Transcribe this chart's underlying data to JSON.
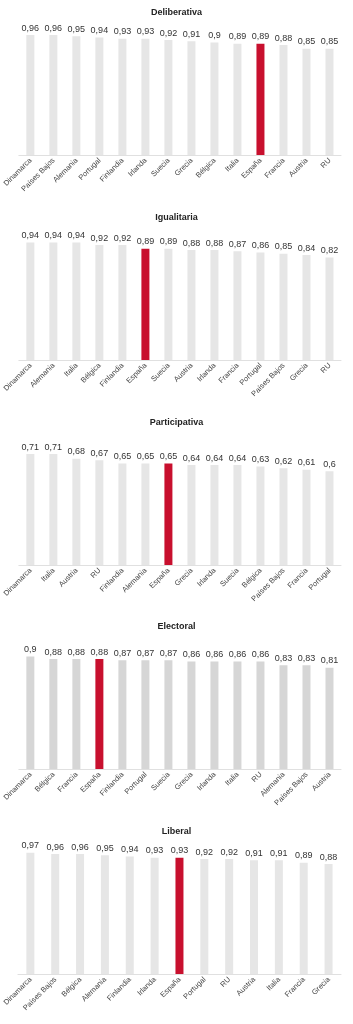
{
  "chart_data": [
    {
      "type": "bar",
      "title": "Deliberativa",
      "categories": [
        "Dinamarca",
        "Países Bajos",
        "Alemania",
        "Portugal",
        "Finlandia",
        "Irlanda",
        "Suecia",
        "Grecia",
        "Bélgica",
        "Italia",
        "España",
        "Francia",
        "Austria",
        "RU"
      ],
      "values": [
        0.96,
        0.96,
        0.95,
        0.94,
        0.93,
        0.93,
        0.92,
        0.91,
        0.9,
        0.89,
        0.89,
        0.88,
        0.85,
        0.85
      ],
      "value_labels": [
        "0,96",
        "0,96",
        "0,95",
        "0,94",
        "0,93",
        "0,93",
        "0,92",
        "0,91",
        "0,9",
        "0,89",
        "0,89",
        "0,88",
        "0,85",
        "0,85"
      ],
      "colors": [
        "#e6e6e6",
        "#e6e6e6",
        "#e6e6e6",
        "#e6e6e6",
        "#e6e6e6",
        "#e6e6e6",
        "#e6e6e6",
        "#e6e6e6",
        "#e6e6e6",
        "#e6e6e6",
        "#c8102e",
        "#e6e6e6",
        "#e6e6e6",
        "#e6e6e6"
      ],
      "tick_labels": "x"
    },
    {
      "type": "bar",
      "title": "Igualitaria",
      "categories": [
        "Dinamarca",
        "Alemania",
        "Italia",
        "Bélgica",
        "Finlandia",
        "España",
        "Suecia",
        "Austria",
        "Irlanda",
        "Francia",
        "Portugal",
        "Países Bajos",
        "Grecia",
        "RU"
      ],
      "values": [
        0.94,
        0.94,
        0.94,
        0.92,
        0.92,
        0.89,
        0.89,
        0.88,
        0.88,
        0.87,
        0.86,
        0.85,
        0.84,
        0.82
      ],
      "value_labels": [
        "0,94",
        "0,94",
        "0,94",
        "0,92",
        "0,92",
        "0,89",
        "0,89",
        "0,88",
        "0,88",
        "0,87",
        "0,86",
        "0,85",
        "0,84",
        "0,82"
      ],
      "colors": [
        "#e6e6e6",
        "#e6e6e6",
        "#e6e6e6",
        "#e6e6e6",
        "#e6e6e6",
        "#c8102e",
        "#e6e6e6",
        "#e6e6e6",
        "#e6e6e6",
        "#e6e6e6",
        "#e6e6e6",
        "#e6e6e6",
        "#e6e6e6",
        "#e6e6e6"
      ],
      "tick_labels": "x"
    },
    {
      "type": "bar",
      "title": "Participativa",
      "categories": [
        "Dinamarca",
        "Italia",
        "Austria",
        "RU",
        "Finlandia",
        "Alemania",
        "España",
        "Grecia",
        "Irlanda",
        "Suecia",
        "Bélgica",
        "Países Bajos",
        "Francia",
        "Portugal"
      ],
      "values": [
        0.71,
        0.71,
        0.68,
        0.67,
        0.65,
        0.65,
        0.65,
        0.64,
        0.64,
        0.64,
        0.63,
        0.62,
        0.61,
        0.6
      ],
      "value_labels": [
        "0,71",
        "0,71",
        "0,68",
        "0,67",
        "0,65",
        "0,65",
        "0,65",
        "0,64",
        "0,64",
        "0,64",
        "0,63",
        "0,62",
        "0,61",
        "0,6"
      ],
      "colors": [
        "#e6e6e6",
        "#e6e6e6",
        "#e6e6e6",
        "#e6e6e6",
        "#e6e6e6",
        "#e6e6e6",
        "#c8102e",
        "#e6e6e6",
        "#e6e6e6",
        "#e6e6e6",
        "#e6e6e6",
        "#e6e6e6",
        "#e6e6e6",
        "#e6e6e6"
      ],
      "tick_labels": "x"
    },
    {
      "type": "bar",
      "title": "Electoral",
      "categories": [
        "Dinamarca",
        "Bélgica",
        "Francia",
        "España",
        "Finlandia",
        "Portugal",
        "Suecia",
        "Grecia",
        "Irlanda",
        "Italia",
        "RU",
        "Alemania",
        "Países Bajos",
        "Austria"
      ],
      "values": [
        0.9,
        0.88,
        0.88,
        0.88,
        0.87,
        0.87,
        0.87,
        0.86,
        0.86,
        0.86,
        0.86,
        0.83,
        0.83,
        0.81
      ],
      "value_labels": [
        "0,9",
        "0,88",
        "0,88",
        "0,88",
        "0,87",
        "0,87",
        "0,87",
        "0,86",
        "0,86",
        "0,86",
        "0,86",
        "0,83",
        "0,83",
        "0,81"
      ],
      "colors": [
        "#d6d6d6",
        "#d6d6d6",
        "#d6d6d6",
        "#c8102e",
        "#d6d6d6",
        "#d6d6d6",
        "#d6d6d6",
        "#d6d6d6",
        "#d6d6d6",
        "#d6d6d6",
        "#d6d6d6",
        "#d6d6d6",
        "#d6d6d6",
        "#d6d6d6"
      ],
      "tick_labels": "x"
    },
    {
      "type": "bar",
      "title": "Liberal",
      "categories": [
        "Dinamarca",
        "Países Bajos",
        "Bélgica",
        "Alemania",
        "Finlandia",
        "Irlanda",
        "España",
        "Portugal",
        "RU",
        "Austria",
        "Italia",
        "Francia",
        "Grecia"
      ],
      "values": [
        0.97,
        0.96,
        0.96,
        0.95,
        0.94,
        0.93,
        0.93,
        0.92,
        0.92,
        0.91,
        0.91,
        0.89,
        0.88
      ],
      "value_labels": [
        "0,97",
        "0,96",
        "0,96",
        "0,95",
        "0,94",
        "0,93",
        "0,93",
        "0,92",
        "0,92",
        "0,91",
        "0,91",
        "0,89",
        "0,88"
      ],
      "colors": [
        "#e6e6e6",
        "#e6e6e6",
        "#e6e6e6",
        "#e6e6e6",
        "#e6e6e6",
        "#e6e6e6",
        "#c8102e",
        "#e6e6e6",
        "#e6e6e6",
        "#e6e6e6",
        "#e6e6e6",
        "#e6e6e6",
        "#e6e6e6"
      ],
      "tick_labels": "x"
    }
  ]
}
